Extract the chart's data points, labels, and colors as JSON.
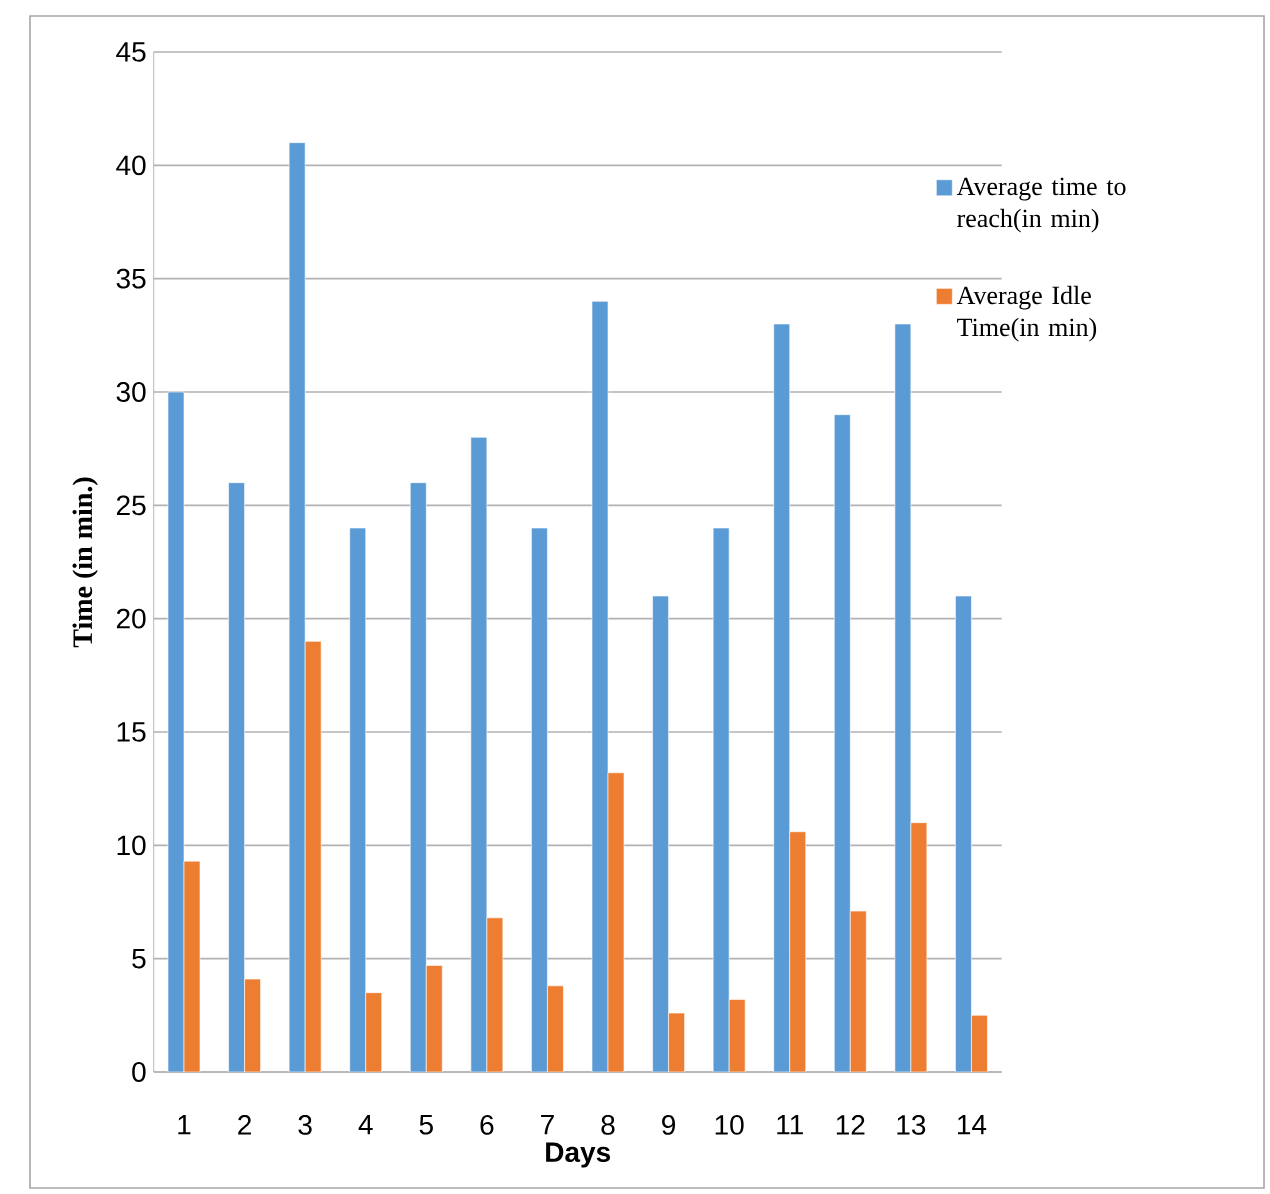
{
  "chart_data": {
    "type": "bar",
    "xlabel": "Days",
    "ylabel": "Time (in min.)",
    "categories": [
      "1",
      "2",
      "3",
      "4",
      "5",
      "6",
      "7",
      "8",
      "9",
      "10",
      "11",
      "12",
      "13",
      "14"
    ],
    "series": [
      {
        "name": "Average time to reach(in min)",
        "color": "#5b9bd5",
        "values": [
          30,
          26,
          41,
          24,
          26,
          28,
          24,
          34,
          21,
          24,
          33,
          29,
          33,
          21
        ]
      },
      {
        "name": "Average Idle Time(in min)",
        "color": "#ed7d31",
        "values": [
          9.3,
          4.1,
          19,
          3.5,
          4.7,
          6.8,
          3.8,
          13.2,
          2.6,
          3.2,
          10.6,
          7.1,
          11,
          2.5
        ]
      }
    ],
    "ylim": [
      0,
      45
    ],
    "yticks": [
      0,
      5,
      10,
      15,
      20,
      25,
      30,
      35,
      40,
      45
    ],
    "grid": "y",
    "legend": "top right"
  }
}
